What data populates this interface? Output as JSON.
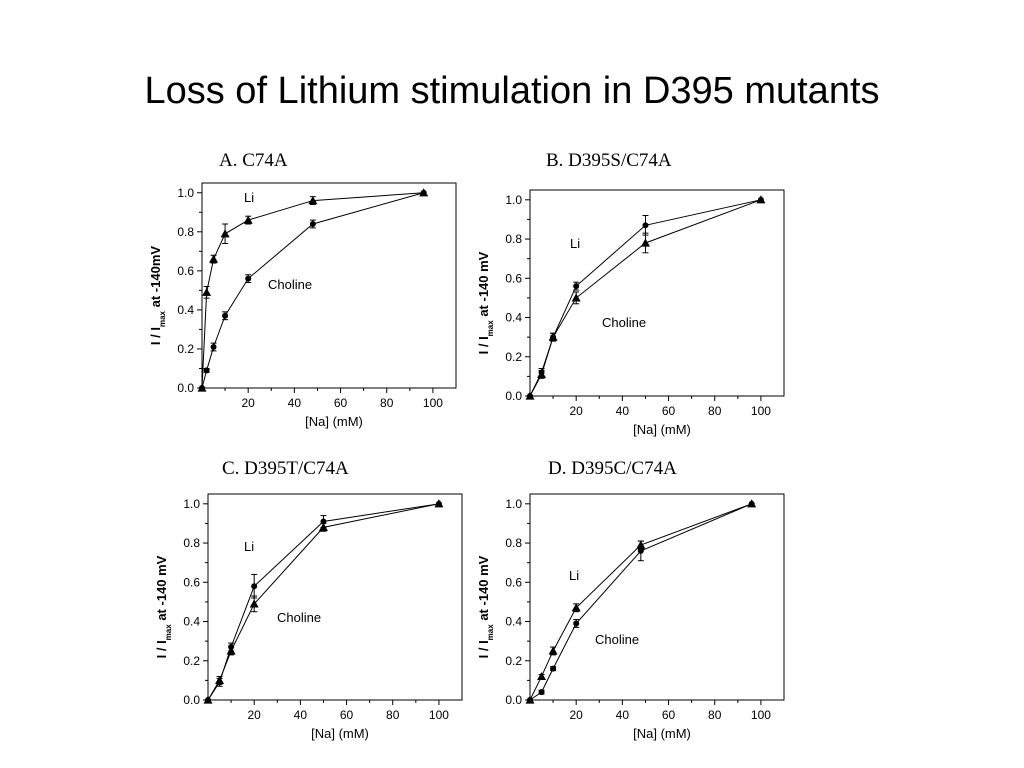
{
  "page": {
    "title": "Loss of Lithium stimulation in D395 mutants"
  },
  "chart_data": [
    {
      "type": "line",
      "title": "A. C74A",
      "xlabel": "[Na] (mM)",
      "ylabel_main": "I / I",
      "ylabel_sub": "max",
      "ylabel_tail": "at -140mV",
      "xlim": [
        0,
        110
      ],
      "ylim": [
        0,
        1.05
      ],
      "xticks": [
        20,
        40,
        60,
        80,
        100
      ],
      "xtick_labels": [
        "20",
        "40",
        "60",
        "80",
        "100"
      ],
      "yticks": [
        0,
        0.2,
        0.4,
        0.6,
        0.8,
        1.0
      ],
      "ytick_labels": [
        "0.0",
        "0.2",
        "0.4",
        "0.6",
        "0.8",
        "1.0"
      ],
      "series": [
        {
          "name": "Li",
          "marker": "triangle",
          "x": [
            0,
            2,
            5,
            10,
            20,
            48,
            96
          ],
          "y": [
            0,
            0.49,
            0.66,
            0.79,
            0.86,
            0.96,
            1.0
          ],
          "err": [
            0,
            0.03,
            0.02,
            0.05,
            0.02,
            0.02,
            0
          ]
        },
        {
          "name": "Choline",
          "marker": "circle",
          "x": [
            0,
            2,
            5,
            10,
            20,
            48,
            96
          ],
          "y": [
            0,
            0.09,
            0.21,
            0.37,
            0.56,
            0.84,
            1.0
          ],
          "err": [
            0,
            0.01,
            0.02,
            0.02,
            0.02,
            0.02,
            0
          ]
        }
      ]
    },
    {
      "type": "line",
      "title": "B. D395S/C74A",
      "xlabel": "[Na] (mM)",
      "ylabel_main": "I / I",
      "ylabel_sub": "max",
      "ylabel_tail": "at -140 mV",
      "xlim": [
        0,
        110
      ],
      "ylim": [
        0,
        1.05
      ],
      "xticks": [
        20,
        40,
        60,
        80,
        100
      ],
      "xtick_labels": [
        "20",
        "40",
        "60",
        "80",
        "100"
      ],
      "yticks": [
        0,
        0.2,
        0.4,
        0.6,
        0.8,
        1.0
      ],
      "ytick_labels": [
        "0.0",
        "0.2",
        "0.4",
        "0.6",
        "0.8",
        "1.0"
      ],
      "series": [
        {
          "name": "Li",
          "marker": "triangle",
          "x": [
            0,
            5,
            10,
            20,
            50,
            100
          ],
          "y": [
            0,
            0.11,
            0.3,
            0.5,
            0.78,
            1.0
          ],
          "err": [
            0,
            0.02,
            0.02,
            0.03,
            0.05,
            0
          ]
        },
        {
          "name": "Choline",
          "marker": "circle",
          "x": [
            0,
            5,
            10,
            20,
            50,
            100
          ],
          "y": [
            0,
            0.12,
            0.3,
            0.56,
            0.87,
            1.0
          ],
          "err": [
            0,
            0.02,
            0.02,
            0.02,
            0.05,
            0
          ]
        }
      ]
    },
    {
      "type": "line",
      "title": "C. D395T/C74A",
      "xlabel": "[Na] (mM)",
      "ylabel_main": "I / I",
      "ylabel_sub": "max",
      "ylabel_tail": "at -140 mV",
      "xlim": [
        0,
        110
      ],
      "ylim": [
        0,
        1.05
      ],
      "xticks": [
        20,
        40,
        60,
        80,
        100
      ],
      "xtick_labels": [
        "20",
        "40",
        "60",
        "80",
        "100"
      ],
      "yticks": [
        0,
        0.2,
        0.4,
        0.6,
        0.8,
        1.0
      ],
      "ytick_labels": [
        "0.0",
        "0.2",
        "0.4",
        "0.6",
        "0.8",
        "1.0"
      ],
      "series": [
        {
          "name": "Li",
          "marker": "triangle",
          "x": [
            0,
            5,
            10,
            20,
            50,
            100
          ],
          "y": [
            0,
            0.1,
            0.25,
            0.49,
            0.88,
            1.0
          ],
          "err": [
            0,
            0.02,
            0.02,
            0.04,
            0.02,
            0
          ]
        },
        {
          "name": "Choline",
          "marker": "circle",
          "x": [
            0,
            5,
            10,
            20,
            50,
            100
          ],
          "y": [
            0,
            0.09,
            0.27,
            0.58,
            0.91,
            1.0
          ],
          "err": [
            0,
            0.02,
            0.02,
            0.06,
            0.03,
            0
          ]
        }
      ]
    },
    {
      "type": "line",
      "title": "D. D395C/C74A",
      "xlabel": "[Na] (mM)",
      "ylabel_main": "I / I",
      "ylabel_sub": "max",
      "ylabel_tail": "at -140 mV",
      "xlim": [
        0,
        110
      ],
      "ylim": [
        0,
        1.05
      ],
      "xticks": [
        20,
        40,
        60,
        80,
        100
      ],
      "xtick_labels": [
        "20",
        "40",
        "60",
        "80",
        "100"
      ],
      "yticks": [
        0,
        0.2,
        0.4,
        0.6,
        0.8,
        1.0
      ],
      "ytick_labels": [
        "0.0",
        "0.2",
        "0.4",
        "0.6",
        "0.8",
        "1.0"
      ],
      "series": [
        {
          "name": "Li",
          "marker": "triangle",
          "x": [
            0,
            5,
            10,
            20,
            48,
            96
          ],
          "y": [
            0,
            0.12,
            0.25,
            0.47,
            0.79,
            1.0
          ],
          "err": [
            0,
            0.01,
            0.02,
            0.02,
            0.02,
            0
          ]
        },
        {
          "name": "Choline",
          "marker": "circle",
          "x": [
            0,
            5,
            10,
            20,
            48,
            96
          ],
          "y": [
            0,
            0.04,
            0.16,
            0.39,
            0.76,
            1.0
          ],
          "err": [
            0,
            0.01,
            0.01,
            0.02,
            0.05,
            0
          ]
        }
      ]
    }
  ]
}
